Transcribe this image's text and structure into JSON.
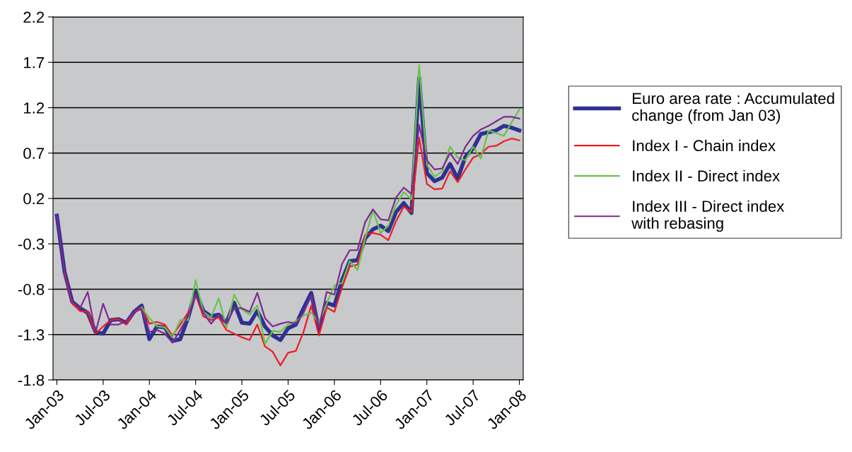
{
  "chart_data": {
    "type": "line",
    "categories": [
      "Jan-03",
      null,
      null,
      null,
      null,
      null,
      "Jul-03",
      null,
      null,
      null,
      null,
      null,
      "Jan-04",
      null,
      null,
      null,
      null,
      null,
      "Jul-04",
      null,
      null,
      null,
      null,
      null,
      "Jan-05",
      null,
      null,
      null,
      null,
      null,
      "Jul-05",
      null,
      null,
      null,
      null,
      null,
      "Jan-06",
      null,
      null,
      null,
      null,
      null,
      "Jul-06",
      null,
      null,
      null,
      null,
      null,
      "Jan-07",
      null,
      null,
      null,
      null,
      null,
      "Jul-07",
      null,
      null,
      null,
      null,
      null,
      "Jan-08"
    ],
    "series": [
      {
        "name": "Euro area rate : Accumulated change (from Jan 03)",
        "color": "#2e3192",
        "values": [
          0.01,
          -0.61,
          -0.94,
          -1.01,
          -1.06,
          -1.27,
          -1.29,
          -1.14,
          -1.13,
          -1.17,
          -1.05,
          -0.98,
          -1.35,
          -1.21,
          -1.22,
          -1.37,
          -1.35,
          -1.12,
          -0.82,
          -1.04,
          -1.1,
          -1.08,
          -1.17,
          -0.95,
          -1.17,
          -1.18,
          -1.04,
          -1.21,
          -1.31,
          -1.36,
          -1.23,
          -1.19,
          -1.01,
          -0.84,
          -1.25,
          -0.95,
          -0.98,
          -0.7,
          -0.49,
          -0.48,
          -0.24,
          -0.14,
          -0.1,
          -0.16,
          0.05,
          0.15,
          0.04,
          1.53,
          0.48,
          0.39,
          0.43,
          0.58,
          0.42,
          0.66,
          0.75,
          0.91,
          0.93,
          0.95,
          1.0,
          0.98,
          0.95
        ]
      },
      {
        "name": "Index I - Chain index",
        "color": "#ed1c24",
        "values": [
          null,
          -0.63,
          -0.96,
          -1.04,
          -1.05,
          -1.29,
          -1.21,
          -1.14,
          -1.13,
          -1.19,
          -1.05,
          -1.0,
          -1.18,
          -1.16,
          -1.19,
          -1.31,
          -1.19,
          -1.06,
          -0.86,
          -1.1,
          -1.14,
          -1.11,
          -1.25,
          -1.29,
          -1.33,
          -1.36,
          -1.19,
          -1.43,
          -1.49,
          -1.64,
          -1.5,
          -1.48,
          -1.27,
          -0.98,
          -1.31,
          -1.0,
          -1.05,
          -0.78,
          -0.55,
          -0.53,
          -0.2,
          -0.18,
          -0.2,
          -0.26,
          -0.05,
          0.11,
          0.05,
          0.87,
          0.36,
          0.3,
          0.31,
          0.5,
          0.38,
          0.52,
          0.65,
          0.69,
          0.77,
          0.78,
          0.83,
          0.86,
          0.84
        ]
      },
      {
        "name": "Index II - Direct index",
        "color": "#66c24a",
        "values": [
          null,
          null,
          null,
          null,
          null,
          null,
          null,
          null,
          null,
          null,
          null,
          -1.0,
          -1.12,
          -1.21,
          -1.22,
          -1.33,
          -1.14,
          -1.14,
          -0.7,
          -1.05,
          -1.11,
          -0.9,
          -1.22,
          -0.86,
          -1.02,
          -1.08,
          -0.98,
          -1.4,
          -1.26,
          -1.27,
          -1.19,
          -1.15,
          -1.09,
          -1.06,
          -1.17,
          -0.96,
          -0.76,
          -0.73,
          -0.49,
          -0.59,
          -0.24,
          0.07,
          -0.18,
          -0.1,
          0.13,
          0.27,
          0.19,
          1.67,
          0.57,
          0.44,
          0.5,
          0.77,
          0.65,
          0.62,
          0.77,
          0.64,
          0.95,
          0.92,
          0.89,
          1.04,
          1.18
        ]
      },
      {
        "name": "Index III - Direct index with rebasing",
        "color": "#7f2a8f",
        "values": [
          0.01,
          -0.61,
          -0.94,
          -1.01,
          -0.83,
          -1.28,
          -0.96,
          -1.19,
          -1.19,
          -1.15,
          -1.05,
          -1.02,
          -1.27,
          -1.25,
          -1.29,
          -1.39,
          -1.25,
          -1.1,
          -0.86,
          -1.06,
          -1.18,
          -1.08,
          -1.18,
          -1.01,
          -1.01,
          -1.05,
          -0.84,
          -1.12,
          -1.21,
          -1.18,
          -1.16,
          -1.18,
          -1.06,
          -0.87,
          -1.22,
          -0.83,
          -0.86,
          -0.52,
          -0.37,
          -0.37,
          -0.06,
          0.08,
          -0.03,
          -0.04,
          0.21,
          0.32,
          0.25,
          1.01,
          0.62,
          0.52,
          0.53,
          0.7,
          0.58,
          0.77,
          0.89,
          0.96,
          1.0,
          1.05,
          1.1,
          1.1,
          1.08
        ]
      }
    ],
    "ylim": [
      -1.8,
      2.2
    ],
    "yticks": [
      {
        "value": -1.8,
        "label": "-1.8"
      },
      {
        "value": -1.3,
        "label": "-1.3"
      },
      {
        "value": -0.8,
        "label": "-0.8"
      },
      {
        "value": -0.3,
        "label": "-0.3"
      },
      {
        "value": 0.2,
        "label": "0.2"
      },
      {
        "value": 0.7,
        "label": "0.7"
      },
      {
        "value": 1.2,
        "label": "1.2"
      },
      {
        "value": 1.7,
        "label": "1.7"
      },
      {
        "value": 2.2,
        "label": "2.2"
      }
    ],
    "grid": "y",
    "legend": "right",
    "marker": "none",
    "line_style": "solid"
  }
}
